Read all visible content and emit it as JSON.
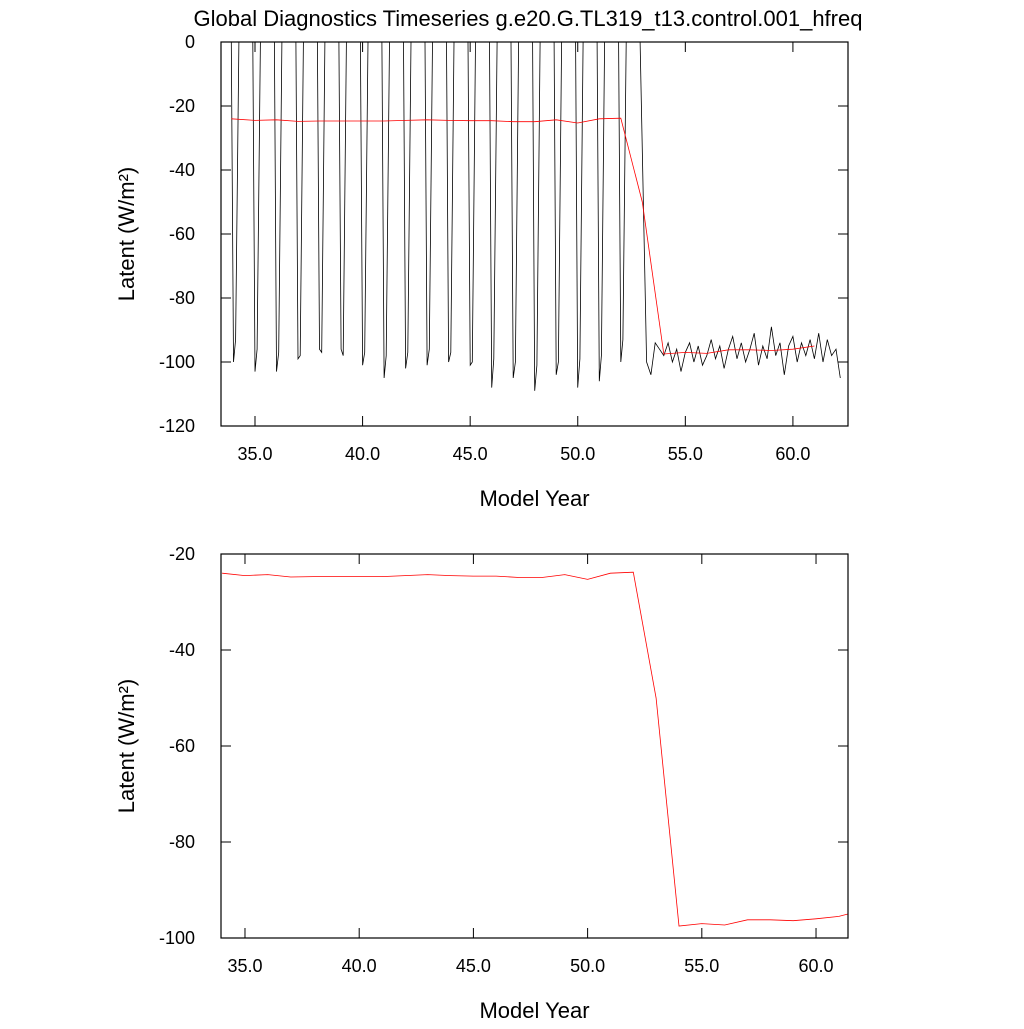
{
  "chart_data": [
    {
      "type": "line",
      "title": "Global Diagnostics Timeseries g.e20.G.TL319_t13.control.001_hfreq",
      "xlabel": "Model Year",
      "ylabel": "Latent (W/m²)",
      "xlim": [
        33.42,
        62.56
      ],
      "ylim": [
        -120,
        0
      ],
      "xticks": [
        {
          "value": 35,
          "label": "35.0"
        },
        {
          "value": 40,
          "label": "40.0"
        },
        {
          "value": 45,
          "label": "45.0"
        },
        {
          "value": 50,
          "label": "50.0"
        },
        {
          "value": 55,
          "label": "55.0"
        },
        {
          "value": 60,
          "label": "60.0"
        }
      ],
      "yticks": [
        0,
        -20,
        -40,
        -60,
        -80,
        -100,
        -120
      ],
      "series": [
        {
          "color": "#000000",
          "x": [
            33.9,
            34.0,
            34.1,
            34.25,
            34.9,
            35.0,
            35.1,
            35.25,
            35.9,
            36.0,
            36.1,
            36.25,
            36.9,
            37.0,
            37.1,
            37.25,
            37.9,
            38.0,
            38.1,
            38.25,
            38.9,
            39.0,
            39.1,
            39.25,
            39.9,
            40.0,
            40.1,
            40.25,
            40.9,
            41.0,
            41.1,
            41.25,
            41.9,
            42.0,
            42.1,
            42.25,
            42.9,
            43.0,
            43.1,
            43.25,
            43.9,
            44.0,
            44.1,
            44.25,
            44.9,
            45.0,
            45.1,
            45.25,
            45.9,
            46.0,
            46.1,
            46.25,
            46.9,
            47.0,
            47.1,
            47.25,
            47.9,
            48.0,
            48.1,
            48.25,
            48.9,
            49.0,
            49.1,
            49.25,
            49.9,
            50.0,
            50.1,
            50.25,
            50.9,
            51.0,
            51.1,
            51.25,
            51.9,
            52.0,
            52.1,
            52.25,
            52.9,
            53.2,
            53.4,
            53.6,
            53.8,
            54.0,
            54.2,
            54.4,
            54.6,
            54.8,
            55.0,
            55.2,
            55.4,
            55.6,
            55.8,
            56.0,
            56.2,
            56.4,
            56.6,
            56.8,
            57.0,
            57.2,
            57.4,
            57.6,
            57.8,
            58.0,
            58.2,
            58.4,
            58.6,
            58.8,
            59.0,
            59.2,
            59.4,
            59.6,
            59.8,
            60.0,
            60.2,
            60.4,
            60.6,
            60.8,
            61.0,
            61.2,
            61.4,
            61.6,
            61.8,
            62.0,
            62.2
          ],
          "values": [
            0,
            -100,
            -93,
            0,
            0,
            -103,
            -96,
            0,
            0,
            -103,
            -97,
            0,
            0,
            -99,
            -98,
            0,
            0,
            -96,
            -97,
            0,
            0,
            -96,
            -98,
            0,
            0,
            -101,
            -97,
            0,
            0,
            -105,
            -98,
            0,
            0,
            -102,
            -97,
            0,
            0,
            -101,
            -96,
            0,
            0,
            -100,
            -97,
            0,
            0,
            -101,
            -100,
            0,
            0,
            -108,
            -99,
            0,
            0,
            -105,
            -100,
            0,
            0,
            -109,
            -101,
            0,
            0,
            -104,
            -100,
            0,
            0,
            -108,
            -99,
            0,
            0,
            -106,
            -98,
            0,
            0,
            -100,
            -93,
            0,
            0,
            -100,
            -104,
            -94,
            -96,
            -98,
            -94,
            -100,
            -96,
            -103,
            -97,
            -94,
            -100,
            -95,
            -101,
            -98,
            -93,
            -99,
            -95,
            -102,
            -96,
            -92,
            -99,
            -94,
            -100,
            -96,
            -91,
            -101,
            -95,
            -99,
            -89,
            -98,
            -94,
            -104,
            -95,
            -92,
            -100,
            -94,
            -98,
            -93,
            -99,
            -91,
            -100,
            -93,
            -98,
            -96,
            -105
          ]
        },
        {
          "color": "#ff0000",
          "x": [
            33.9,
            35,
            36,
            37,
            38,
            39,
            40,
            41,
            42,
            43,
            44,
            45,
            46,
            47,
            48,
            49,
            50,
            51,
            52,
            53,
            54,
            55,
            56,
            57,
            58,
            59,
            60,
            61
          ],
          "values": [
            -24,
            -24.5,
            -24.3,
            -24.8,
            -24.7,
            -24.7,
            -24.7,
            -24.7,
            -24.5,
            -24.3,
            -24.5,
            -24.6,
            -24.6,
            -24.9,
            -24.9,
            -24.3,
            -25.3,
            -24,
            -23.8,
            -50,
            -97.5,
            -97,
            -97.3,
            -96.2,
            -96.2,
            -96.4,
            -96,
            -95
          ]
        }
      ]
    },
    {
      "type": "line",
      "xlabel": "Model Year",
      "ylabel": "Latent (W/m²)",
      "xlim": [
        33.95,
        61.4
      ],
      "ylim": [
        -100,
        -20
      ],
      "xticks": [
        {
          "value": 35,
          "label": "35.0"
        },
        {
          "value": 40,
          "label": "40.0"
        },
        {
          "value": 45,
          "label": "45.0"
        },
        {
          "value": 50,
          "label": "50.0"
        },
        {
          "value": 55,
          "label": "55.0"
        },
        {
          "value": 60,
          "label": "60.0"
        }
      ],
      "yticks": [
        -20,
        -40,
        -60,
        -80,
        -100
      ],
      "series": [
        {
          "color": "#ff0000",
          "x": [
            34,
            35,
            36,
            37,
            38,
            39,
            40,
            41,
            42,
            43,
            44,
            45,
            46,
            47,
            48,
            49,
            50,
            51,
            52,
            53,
            54,
            55,
            56,
            57,
            58,
            59,
            60,
            61,
            61.4
          ],
          "values": [
            -24,
            -24.5,
            -24.3,
            -24.8,
            -24.7,
            -24.7,
            -24.7,
            -24.7,
            -24.5,
            -24.3,
            -24.5,
            -24.6,
            -24.6,
            -24.9,
            -24.9,
            -24.3,
            -25.3,
            -24,
            -23.8,
            -50,
            -97.5,
            -97,
            -97.3,
            -96.2,
            -96.2,
            -96.4,
            -96,
            -95.5,
            -95
          ]
        }
      ]
    }
  ]
}
